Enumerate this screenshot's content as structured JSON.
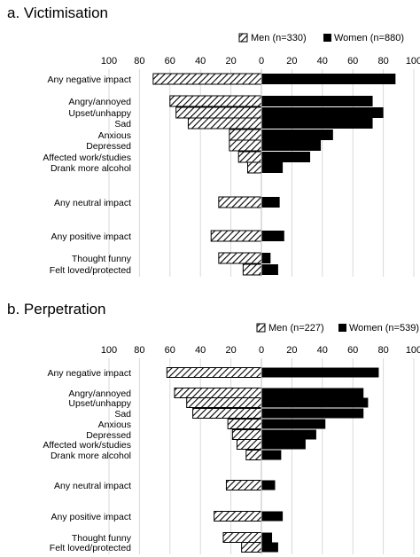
{
  "chart_data": [
    {
      "type": "bar",
      "orientation": "horizontal-diverging",
      "title": "a. Victimisation",
      "legend_position": "top-right",
      "grid": true,
      "xlim": [
        -100,
        100
      ],
      "tick_labels": [
        "100",
        "80",
        "60",
        "40",
        "20",
        "0",
        "20",
        "40",
        "60",
        "80",
        "100"
      ],
      "categories": [
        "Any negative impact",
        "Angry/annoyed",
        "Upset/unhappy",
        "Sad",
        "Anxious",
        "Depressed",
        "Affected work/studies",
        "Drank more alcohol",
        "Any neutral impact",
        "Any positive impact",
        "Thought funny",
        "Felt loved/protected"
      ],
      "series": [
        {
          "name": "Men (n=330)",
          "side": "left",
          "pattern": "hatched",
          "values": [
            71,
            60,
            56,
            48,
            21,
            21,
            15,
            9,
            28,
            33,
            28,
            12
          ]
        },
        {
          "name": "Women (n=880)",
          "side": "right",
          "pattern": "solid",
          "color": "#000000",
          "values": [
            88,
            73,
            80,
            73,
            47,
            39,
            32,
            14,
            12,
            15,
            6,
            11
          ]
        }
      ]
    },
    {
      "type": "bar",
      "orientation": "horizontal-diverging",
      "title": "b. Perpetration",
      "legend_position": "top-right",
      "grid": true,
      "xlim": [
        -100,
        100
      ],
      "tick_labels": [
        "100",
        "80",
        "60",
        "40",
        "20",
        "0",
        "20",
        "40",
        "60",
        "80",
        "100"
      ],
      "categories": [
        "Any negative impact",
        "Angry/annoyed",
        "Upset/unhappy",
        "Sad",
        "Anxious",
        "Depressed",
        "Affected work/studies",
        "Drank more alcohol",
        "Any neutral impact",
        "Any positive impact",
        "Thought funny",
        "Felt loved/protected"
      ],
      "series": [
        {
          "name": "Men (n=227)",
          "side": "left",
          "pattern": "hatched",
          "values": [
            62,
            57,
            49,
            45,
            22,
            19,
            16,
            10,
            23,
            31,
            25,
            13
          ]
        },
        {
          "name": "Women (n=539)",
          "side": "right",
          "pattern": "solid",
          "color": "#000000",
          "values": [
            77,
            67,
            70,
            67,
            42,
            36,
            29,
            13,
            9,
            14,
            7,
            11
          ]
        }
      ]
    }
  ]
}
